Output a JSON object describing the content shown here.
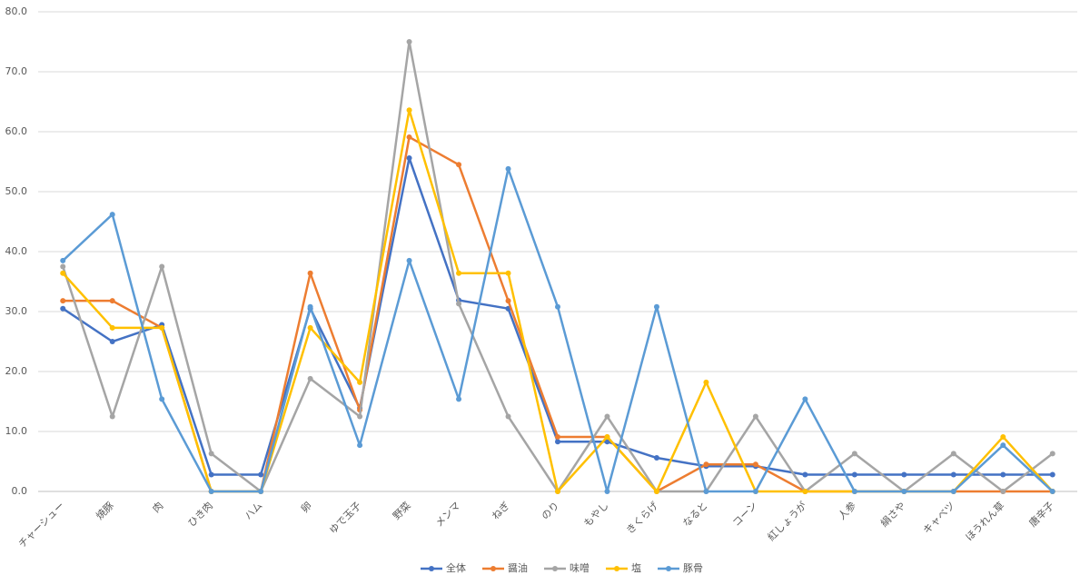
{
  "chart_data": {
    "type": "line",
    "categories": [
      "チャーシュー",
      "焼豚",
      "肉",
      "ひき肉",
      "ハム",
      "卵",
      "ゆで玉子",
      "野菜",
      "メンマ",
      "ねぎ",
      "のり",
      "もやし",
      "きくらげ",
      "なると",
      "コーン",
      "紅しょうが",
      "人参",
      "絹さや",
      "キャベツ",
      "ほうれん草",
      "唐辛子"
    ],
    "series": [
      {
        "name": "全体",
        "color": "#4472c4",
        "values": [
          30.5,
          25.0,
          27.8,
          2.8,
          2.8,
          30.5,
          13.9,
          55.6,
          31.9,
          30.5,
          8.3,
          8.3,
          5.6,
          4.2,
          4.2,
          2.8,
          2.8,
          2.8,
          2.8,
          2.8,
          2.8
        ]
      },
      {
        "name": "醤油",
        "color": "#ed7d31",
        "values": [
          31.8,
          31.8,
          27.3,
          0,
          0,
          36.4,
          13.6,
          59.1,
          54.5,
          31.8,
          9.1,
          9.1,
          0,
          4.5,
          4.5,
          0,
          0,
          0,
          0,
          0,
          0
        ]
      },
      {
        "name": "味噌",
        "color": "#a5a5a5",
        "values": [
          37.5,
          12.5,
          37.5,
          6.3,
          0,
          18.8,
          12.5,
          75.0,
          31.3,
          12.5,
          0,
          12.5,
          0,
          0,
          12.5,
          0,
          6.3,
          0,
          6.3,
          0,
          6.3
        ]
      },
      {
        "name": "塩",
        "color": "#ffc000",
        "values": [
          36.4,
          27.3,
          27.3,
          0,
          0,
          27.3,
          18.2,
          63.6,
          36.4,
          36.4,
          0,
          9.1,
          0,
          18.2,
          0,
          0,
          0,
          0,
          0,
          9.1,
          0
        ]
      },
      {
        "name": "豚骨",
        "color": "#5b9bd5",
        "values": [
          38.5,
          46.2,
          15.4,
          0,
          0,
          30.8,
          7.7,
          38.5,
          15.4,
          53.8,
          30.8,
          0,
          30.8,
          0,
          0,
          15.4,
          0,
          0,
          0,
          7.7,
          0
        ]
      }
    ],
    "ylim": [
      0,
      80
    ],
    "yticks": [
      {
        "value": 0,
        "label": "0.0"
      },
      {
        "value": 10,
        "label": "10.0"
      },
      {
        "value": 20,
        "label": "20.0"
      },
      {
        "value": 30,
        "label": "30.0"
      },
      {
        "value": 40,
        "label": "40.0"
      },
      {
        "value": 50,
        "label": "50.0"
      },
      {
        "value": 60,
        "label": "60.0"
      },
      {
        "value": 70,
        "label": "70.0"
      },
      {
        "value": 80,
        "label": "80.0"
      }
    ],
    "grid": true,
    "legend": "bottom"
  }
}
